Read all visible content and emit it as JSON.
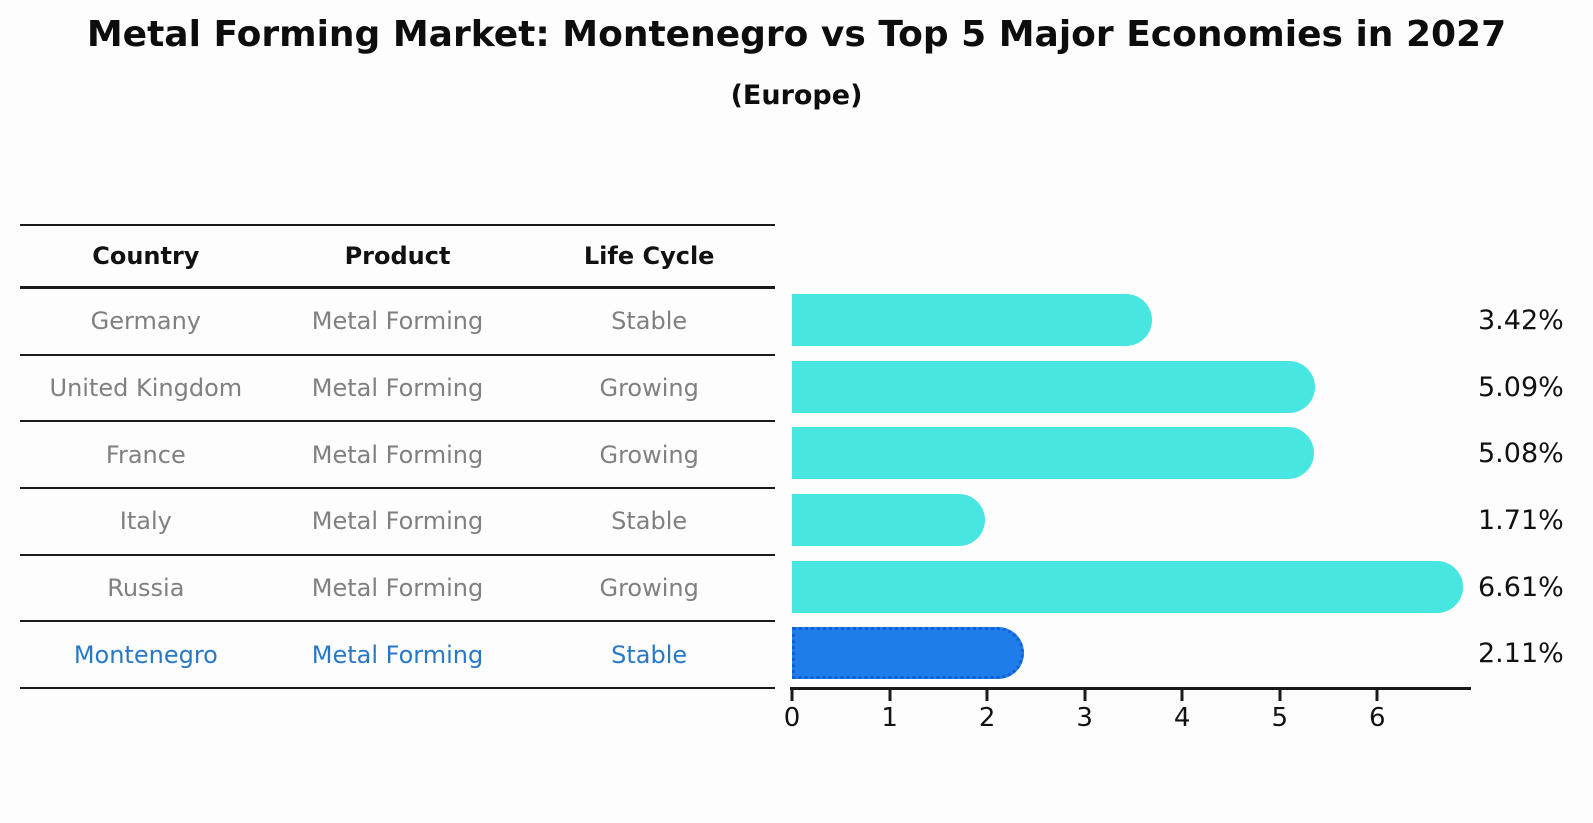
{
  "header": {
    "title": "Metal Forming Market: Montenegro vs Top 5 Major Economies in 2027",
    "subtitle": "(Europe)"
  },
  "table": {
    "columns": [
      "Country",
      "Product",
      "Life Cycle"
    ],
    "rows": [
      {
        "country": "Germany",
        "product": "Metal Forming",
        "life_cycle": "Stable",
        "highlight": false
      },
      {
        "country": "United Kingdom",
        "product": "Metal Forming",
        "life_cycle": "Growing",
        "highlight": false
      },
      {
        "country": "France",
        "product": "Metal Forming",
        "life_cycle": "Growing",
        "highlight": false
      },
      {
        "country": "Italy",
        "product": "Metal Forming",
        "life_cycle": "Stable",
        "highlight": false
      },
      {
        "country": "Russia",
        "product": "Metal Forming",
        "life_cycle": "Growing",
        "highlight": false
      },
      {
        "country": "Montenegro",
        "product": "Metal Forming",
        "life_cycle": "Stable",
        "highlight": true
      }
    ]
  },
  "chart_data": {
    "type": "bar",
    "orientation": "horizontal",
    "title": "Metal Forming Market: Montenegro vs Top 5 Major Economies in 2027",
    "subtitle": "(Europe)",
    "categories": [
      "Germany",
      "United Kingdom",
      "France",
      "Italy",
      "Russia",
      "Montenegro"
    ],
    "values": [
      3.42,
      5.09,
      5.08,
      1.71,
      6.61,
      2.11
    ],
    "value_labels": [
      "3.42%",
      "5.09%",
      "5.08%",
      "1.71%",
      "6.61%",
      "2.11%"
    ],
    "highlight_category": "Montenegro",
    "xlim": [
      0,
      6.95
    ],
    "xticks": [
      0,
      1,
      2,
      3,
      4,
      5,
      6
    ],
    "grid": false,
    "legend": false,
    "colors": {
      "bar_default": "#47E6E1",
      "bar_highlight": "#1E7DE8",
      "bar_highlight_border": "#0E5FD8",
      "highlight_text": "#2878C8",
      "table_text": "#808080",
      "header_text": "#111111",
      "value_text": "#111111",
      "axis": "#1A1A1A"
    }
  }
}
